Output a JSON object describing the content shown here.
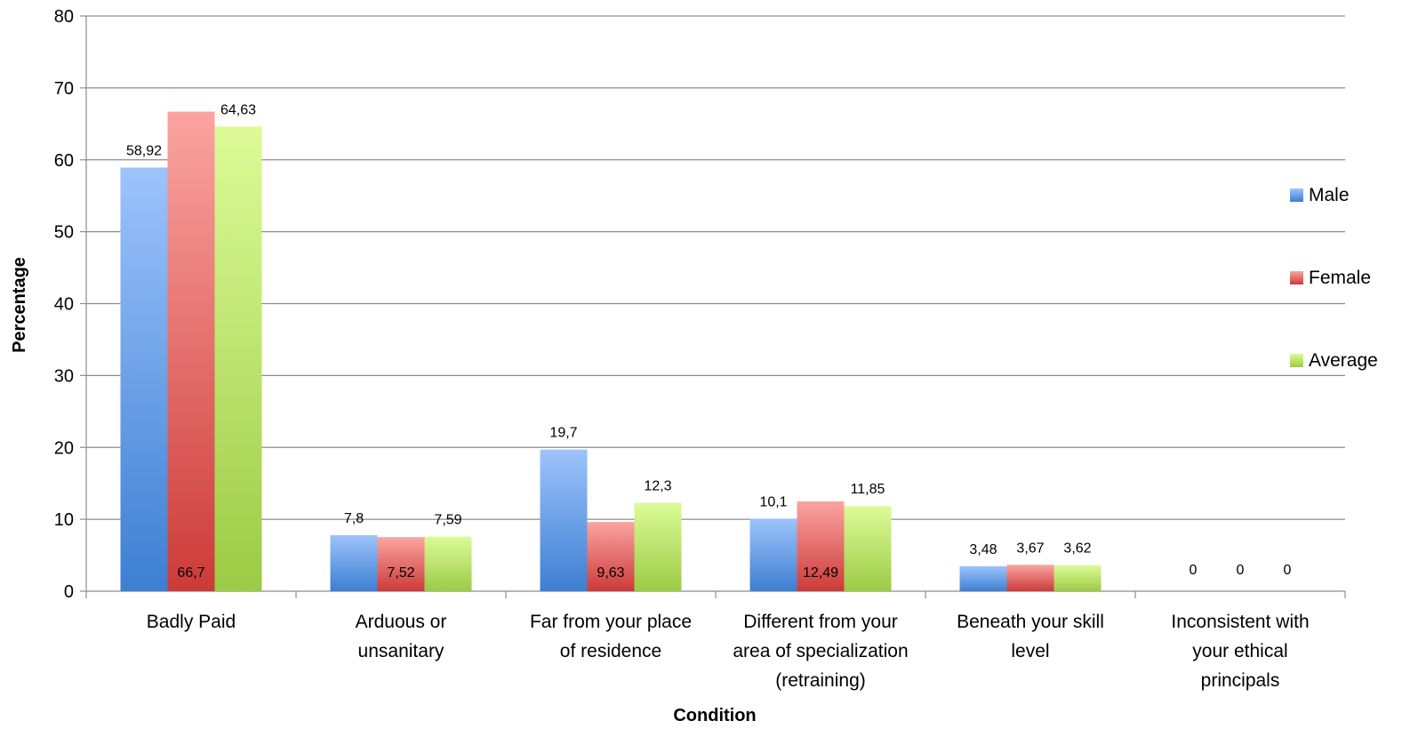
{
  "chart_data": {
    "type": "bar",
    "xlabel": "Condition",
    "ylabel": "Percentage",
    "ylim": [
      0,
      80
    ],
    "yticks": [
      0,
      10,
      20,
      30,
      40,
      50,
      60,
      70,
      80
    ],
    "grid": true,
    "legend_position": "right",
    "categories": [
      [
        "Badly Paid"
      ],
      [
        "Arduous or",
        "unsanitary"
      ],
      [
        "Far from your place",
        "of residence"
      ],
      [
        "Different from your",
        "area of specialization",
        "(retraining)"
      ],
      [
        "Beneath your skill",
        "level"
      ],
      [
        "Inconsistent with",
        "your ethical",
        "principals"
      ]
    ],
    "series": [
      {
        "name": "Male",
        "values": [
          58.92,
          7.8,
          19.7,
          10.1,
          3.48,
          0
        ],
        "labels": [
          "58,92",
          "7,8",
          "19,7",
          "10,1",
          "3,48",
          "0"
        ],
        "color_light": "#9dc3fb",
        "color_dark": "#3d7fd2"
      },
      {
        "name": "Female",
        "values": [
          66.7,
          7.52,
          9.63,
          12.49,
          3.67,
          0
        ],
        "labels": [
          "66,7",
          "7,52",
          "9,63",
          "12,49",
          "3,67",
          "0"
        ],
        "color_light": "#fba4a1",
        "color_dark": "#cc3b38"
      },
      {
        "name": "Average",
        "values": [
          64.63,
          7.59,
          12.3,
          11.85,
          3.62,
          0
        ],
        "labels": [
          "64,63",
          "7,59",
          "12,3",
          "11,85",
          "3,62",
          "0"
        ],
        "color_light": "#dcfb98",
        "color_dark": "#9ccb45"
      }
    ]
  }
}
